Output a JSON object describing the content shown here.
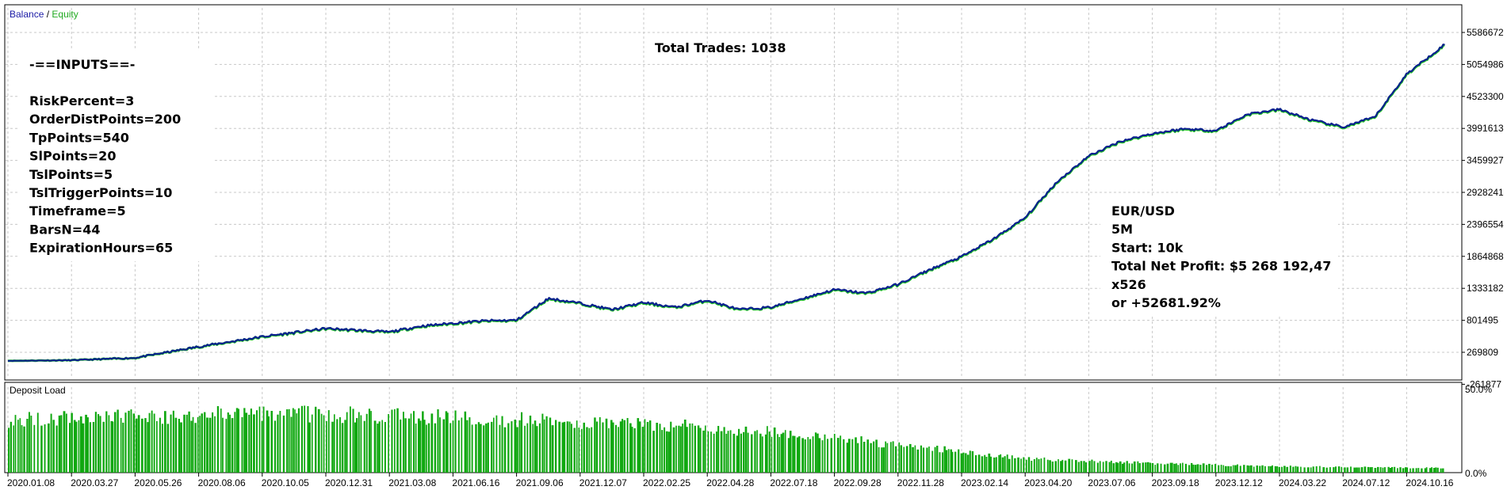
{
  "legend": {
    "balance": "Balance",
    "sep": " / ",
    "equity": "Equity"
  },
  "deposit_panel_label": "Deposit Load",
  "total_trades": "Total Trades: 1038",
  "inputs": {
    "header": "-==INPUTS==-",
    "lines": [
      "RiskPercent=3",
      "OrderDistPoints=200",
      "TpPoints=540",
      "SlPoints=20",
      "TslPoints=5",
      "TslTriggerPoints=10",
      "Timeframe=5",
      "BarsN=44",
      "ExpirationHours=65"
    ]
  },
  "summary": {
    "lines": [
      "EUR/USD",
      "5M",
      "Start: 10k",
      "Total Net Profit: $5 268 192,47",
      "x526",
      "or +52681.92%"
    ]
  },
  "colors": {
    "balance": "#0a1f8f",
    "equity": "#22c522",
    "deposit": "#10a810",
    "grid": "#c8c8c8",
    "legend_balance": "#1a1aa6",
    "legend_equity": "#22aa22"
  },
  "chart_data": [
    {
      "type": "line",
      "title": "",
      "ylim": [
        -261877,
        5586672
      ],
      "y_ticks": [
        "5586672",
        "5054986",
        "4523300",
        "3991613",
        "3459927",
        "2928241",
        "2396554",
        "1864868",
        "1333182",
        "801495",
        "269809",
        "-261877"
      ],
      "x_tick_labels": [
        "2020.01.08",
        "2020.03.27",
        "2020.05.26",
        "2020.08.06",
        "2020.10.05",
        "2020.12.31",
        "2021.03.08",
        "2021.06.16",
        "2021.09.06",
        "2021.12.07",
        "2022.02.25",
        "2022.04.28",
        "2022.07.18",
        "2022.09.28",
        "2022.11.28",
        "2023.02.14",
        "2023.04.20",
        "2023.07.06",
        "2023.09.18",
        "2023.12.12",
        "2024.03.22",
        "2024.07.12",
        "2024.10.16"
      ],
      "series": [
        {
          "name": "Balance",
          "x": [
            0,
            1,
            2,
            3,
            4,
            5,
            6,
            6.5,
            7,
            7.5,
            8,
            8.5,
            9,
            9.5,
            10,
            10.5,
            11,
            11.5,
            12,
            12.5,
            13,
            13.5,
            14,
            14.5,
            15,
            15.5,
            16,
            16.5,
            17,
            17.5,
            18,
            18.5,
            19,
            19.5,
            20,
            20.5,
            21,
            21.5,
            22,
            22.6
          ],
          "y": [
            10000,
            20000,
            60000,
            250000,
            420000,
            560000,
            500000,
            600000,
            650000,
            690000,
            700000,
            1070000,
            990000,
            880000,
            1000000,
            920000,
            1040000,
            880000,
            920000,
            1070000,
            1220000,
            1160000,
            1310000,
            1560000,
            1780000,
            2080000,
            2440000,
            3050000,
            3490000,
            3740000,
            3870000,
            3950000,
            3920000,
            4200000,
            4280000,
            4100000,
            3980000,
            4150000,
            4880000,
            5386000
          ]
        },
        {
          "name": "Equity",
          "x": [
            0,
            1,
            2,
            3,
            4,
            5,
            6,
            6.5,
            7,
            7.5,
            8,
            8.5,
            9,
            9.5,
            10,
            10.5,
            11,
            11.5,
            12,
            12.5,
            13,
            13.5,
            14,
            14.5,
            15,
            15.5,
            16,
            16.5,
            17,
            17.5,
            18,
            18.5,
            19,
            19.5,
            20,
            20.5,
            21,
            21.5,
            22,
            22.6
          ],
          "y": [
            10000,
            20000,
            58000,
            246000,
            414000,
            553000,
            492000,
            592000,
            640000,
            682000,
            692000,
            1060000,
            982000,
            872000,
            990000,
            912000,
            1030000,
            872000,
            912000,
            1060000,
            1210000,
            1150000,
            1300000,
            1550000,
            1770000,
            2070000,
            2430000,
            3040000,
            3480000,
            3730000,
            3860000,
            3940000,
            3910000,
            4190000,
            4270000,
            4090000,
            3970000,
            4140000,
            4870000,
            5376000
          ]
        }
      ]
    },
    {
      "type": "bar",
      "title": "",
      "ylim": [
        0,
        50
      ],
      "y_ticks": [
        "50.0%",
        "0.0%"
      ],
      "series": [
        {
          "name": "Deposit Load",
          "x": [
            0,
            2,
            4,
            6,
            8,
            10,
            12,
            14,
            16,
            18,
            20,
            22.6
          ],
          "y": [
            34,
            36,
            38,
            37,
            34,
            32,
            26,
            18,
            9,
            6,
            4,
            3
          ]
        }
      ]
    }
  ]
}
